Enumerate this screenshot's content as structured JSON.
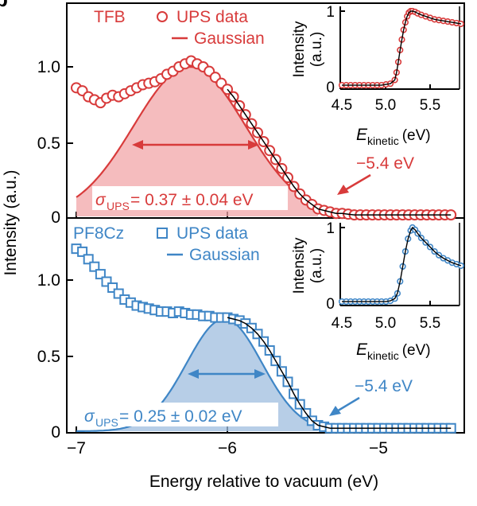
{
  "colors": {
    "red": "#d83b3b",
    "red_fill": "#f2a5a8",
    "blue": "#3f86c6",
    "blue_fill": "#9fbedf",
    "fit": "#000000"
  },
  "panel_label": "b",
  "x_axis": {
    "label": "Energy relative to vacuum (eV)",
    "ticks": [
      "−7",
      "−6",
      "−5"
    ]
  },
  "y_axis": {
    "label": "Intensity (a.u.)",
    "top_ticks": [
      "1.0",
      "0.5",
      "0"
    ],
    "bottom_ticks": [
      "1.0",
      "0.5",
      "0"
    ]
  },
  "top": {
    "material": "TFB",
    "legend_data": "UPS data",
    "legend_fit": "Gaussian",
    "sigma_symbol": "σ",
    "sigma_sub": "UPS",
    "sigma_value": "= 0.37 ± 0.04 eV",
    "onset_label": "−5.4 eV"
  },
  "bottom": {
    "material": "PF8Cz",
    "legend_data": "UPS data",
    "legend_fit": "Gaussian",
    "sigma_symbol": "σ",
    "sigma_sub": "UPS",
    "sigma_value": "= 0.25 ± 0.02 eV",
    "onset_label": "−5.4 eV"
  },
  "inset": {
    "ylabel_line1": "Intensity",
    "ylabel_line2": "(a.u.)",
    "xticks": [
      "4.5",
      "5.0",
      "5.5"
    ],
    "yticks": [
      "1",
      "0"
    ],
    "xlabel_main": "E",
    "xlabel_sub": "kinetic",
    "xlabel_unit": "(eV)"
  },
  "chart_data": [
    {
      "type": "scatter",
      "title": "TFB",
      "xlabel": "Energy relative to vacuum (eV)",
      "ylabel": "Intensity (a.u.)",
      "xlim": [
        -7.0,
        -4.5
      ],
      "ylim": [
        0,
        1.35
      ],
      "series": [
        {
          "name": "UPS data",
          "marker": "circle",
          "x": [
            -7.0,
            -6.96,
            -6.92,
            -6.88,
            -6.84,
            -6.8,
            -6.76,
            -6.72,
            -6.68,
            -6.64,
            -6.6,
            -6.56,
            -6.52,
            -6.48,
            -6.44,
            -6.4,
            -6.36,
            -6.32,
            -6.28,
            -6.24,
            -6.2,
            -6.16,
            -6.12,
            -6.08,
            -6.04,
            -6.0,
            -5.96,
            -5.92,
            -5.88,
            -5.84,
            -5.8,
            -5.76,
            -5.72,
            -5.68,
            -5.64,
            -5.6,
            -5.56,
            -5.52,
            -5.48,
            -5.44,
            -5.4,
            -5.36,
            -5.32,
            -5.28,
            -5.24,
            -5.2,
            -5.16,
            -5.12,
            -5.08,
            -5.04,
            -5.0,
            -4.96,
            -4.92,
            -4.88,
            -4.84,
            -4.8,
            -4.76,
            -4.72,
            -4.68,
            -4.64,
            -4.6,
            -4.56,
            -4.52
          ],
          "y": [
            0.86,
            0.84,
            0.8,
            0.78,
            0.76,
            0.79,
            0.81,
            0.8,
            0.82,
            0.84,
            0.86,
            0.88,
            0.89,
            0.9,
            0.92,
            0.95,
            0.97,
            1.0,
            1.02,
            1.04,
            1.02,
            1.0,
            0.97,
            0.93,
            0.89,
            0.85,
            0.8,
            0.74,
            0.68,
            0.62,
            0.56,
            0.5,
            0.44,
            0.38,
            0.32,
            0.26,
            0.2,
            0.15,
            0.11,
            0.08,
            0.05,
            0.04,
            0.03,
            0.02,
            0.02,
            0.015,
            0.01,
            0.01,
            0.01,
            0.01,
            0.01,
            0.01,
            0.01,
            0.01,
            0.01,
            0.01,
            0.01,
            0.01,
            0.01,
            0.01,
            0.01,
            0.01,
            0.01
          ]
        },
        {
          "name": "Gaussian",
          "amplitude": 1.0,
          "center": -6.25,
          "sigma": 0.37,
          "cutoff": -5.4
        }
      ],
      "annotations": [
        "σUPS = 0.37 ± 0.04 eV",
        "−5.4 eV"
      ]
    },
    {
      "type": "scatter",
      "title": "PF8Cz",
      "xlabel": "Energy relative to vacuum (eV)",
      "ylabel": "Intensity (a.u.)",
      "xlim": [
        -7.0,
        -4.5
      ],
      "ylim": [
        0,
        1.3
      ],
      "series": [
        {
          "name": "UPS data",
          "marker": "square",
          "x": [
            -7.0,
            -6.96,
            -6.92,
            -6.88,
            -6.84,
            -6.8,
            -6.76,
            -6.72,
            -6.68,
            -6.64,
            -6.6,
            -6.56,
            -6.52,
            -6.48,
            -6.44,
            -6.4,
            -6.36,
            -6.32,
            -6.28,
            -6.24,
            -6.2,
            -6.16,
            -6.12,
            -6.08,
            -6.04,
            -6.0,
            -5.96,
            -5.92,
            -5.88,
            -5.84,
            -5.8,
            -5.76,
            -5.72,
            -5.68,
            -5.64,
            -5.6,
            -5.56,
            -5.52,
            -5.48,
            -5.44,
            -5.4,
            -5.36,
            -5.32,
            -5.28,
            -5.24,
            -5.2,
            -5.16,
            -5.12,
            -5.08,
            -5.04,
            -5.0,
            -4.96,
            -4.92,
            -4.88,
            -4.84,
            -4.8,
            -4.76,
            -4.72,
            -4.68,
            -4.64,
            -4.6,
            -4.56,
            -4.52
          ],
          "y": [
            1.22,
            1.2,
            1.15,
            1.1,
            1.05,
            1.0,
            0.96,
            0.92,
            0.88,
            0.86,
            0.84,
            0.83,
            0.82,
            0.81,
            0.8,
            0.8,
            0.79,
            0.8,
            0.79,
            0.78,
            0.78,
            0.77,
            0.77,
            0.76,
            0.76,
            0.76,
            0.75,
            0.74,
            0.72,
            0.69,
            0.65,
            0.6,
            0.54,
            0.47,
            0.4,
            0.33,
            0.25,
            0.18,
            0.12,
            0.07,
            0.04,
            0.03,
            0.02,
            0.02,
            0.02,
            0.02,
            0.02,
            0.02,
            0.02,
            0.02,
            0.02,
            0.02,
            0.02,
            0.02,
            0.02,
            0.02,
            0.02,
            0.02,
            0.02,
            0.02,
            0.02,
            0.02,
            0.02
          ]
        },
        {
          "name": "Gaussian",
          "amplitude": 0.75,
          "center": -6.02,
          "sigma": 0.25,
          "cutoff": -5.4
        }
      ],
      "annotations": [
        "σUPS = 0.25 ± 0.02 eV",
        "−5.4 eV"
      ]
    },
    {
      "type": "scatter",
      "title": "TFB inset",
      "xlabel": "E kinetic (eV)",
      "ylabel": "Intensity (a.u.)",
      "xlim": [
        4.5,
        5.85
      ],
      "ylim": [
        0,
        1.05
      ],
      "series": [
        {
          "name": "UPS data",
          "x": [
            4.5,
            4.55,
            4.6,
            4.65,
            4.7,
            4.75,
            4.8,
            4.85,
            4.9,
            4.95,
            5.0,
            5.05,
            5.1,
            5.12,
            5.14,
            5.16,
            5.18,
            5.2,
            5.22,
            5.24,
            5.26,
            5.28,
            5.3,
            5.33,
            5.36,
            5.4,
            5.45,
            5.5,
            5.55,
            5.6,
            5.65,
            5.7,
            5.75,
            5.8,
            5.85
          ],
          "y": [
            0.01,
            0.01,
            0.01,
            0.01,
            0.01,
            0.01,
            0.01,
            0.01,
            0.01,
            0.01,
            0.02,
            0.03,
            0.08,
            0.18,
            0.32,
            0.48,
            0.62,
            0.75,
            0.85,
            0.93,
            0.98,
            1.0,
            1.0,
            0.99,
            0.97,
            0.95,
            0.93,
            0.91,
            0.89,
            0.88,
            0.87,
            0.86,
            0.85,
            0.84,
            0.83
          ]
        }
      ]
    },
    {
      "type": "scatter",
      "title": "PF8Cz inset",
      "xlabel": "E kinetic (eV)",
      "ylabel": "Intensity (a.u.)",
      "xlim": [
        4.5,
        5.85
      ],
      "ylim": [
        0,
        1.05
      ],
      "series": [
        {
          "name": "UPS data",
          "x": [
            4.5,
            4.55,
            4.6,
            4.65,
            4.7,
            4.75,
            4.8,
            4.85,
            4.9,
            4.95,
            5.0,
            5.05,
            5.1,
            5.13,
            5.16,
            5.19,
            5.22,
            5.25,
            5.28,
            5.3,
            5.33,
            5.36,
            5.4,
            5.45,
            5.5,
            5.55,
            5.6,
            5.65,
            5.7,
            5.75,
            5.8,
            5.85
          ],
          "y": [
            0.01,
            0.01,
            0.01,
            0.01,
            0.01,
            0.01,
            0.01,
            0.01,
            0.01,
            0.01,
            0.01,
            0.02,
            0.05,
            0.12,
            0.28,
            0.48,
            0.68,
            0.85,
            0.96,
            1.0,
            0.97,
            0.92,
            0.86,
            0.8,
            0.74,
            0.68,
            0.63,
            0.59,
            0.56,
            0.53,
            0.51,
            0.49
          ]
        }
      ]
    }
  ]
}
